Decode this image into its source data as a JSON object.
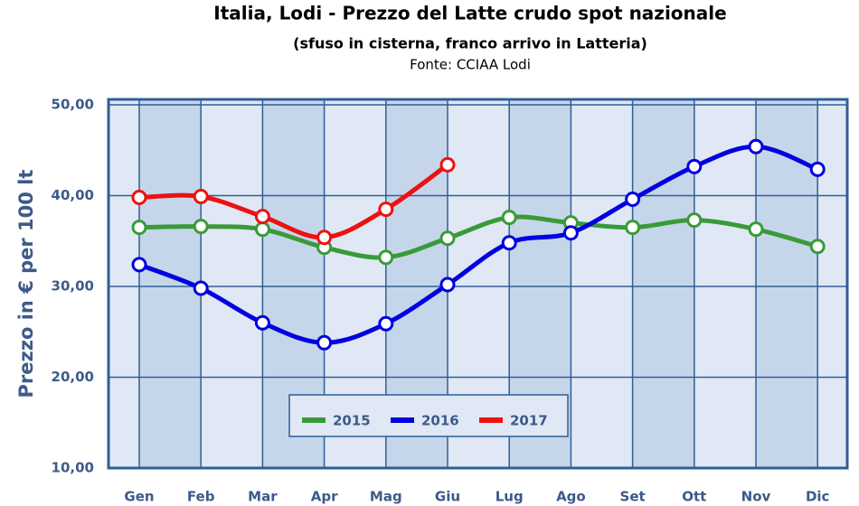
{
  "chart_data": {
    "type": "line",
    "title": "Italia, Lodi - Prezzo del Latte crudo spot nazionale",
    "subtitle": "(sfuso in cisterna, franco arrivo in Latteria)",
    "source": "Fonte: CCIAA Lodi",
    "y_label": "Prezzo in € per 100 lt",
    "categories": [
      "Gen",
      "Feb",
      "Mar",
      "Apr",
      "Mag",
      "Giu",
      "Lug",
      "Ago",
      "Set",
      "Ott",
      "Nov",
      "Dic"
    ],
    "series": [
      {
        "name": "2015",
        "color": "#3a9a3a",
        "values": [
          36.5,
          36.6,
          36.3,
          34.3,
          33.2,
          35.3,
          37.6,
          37.0,
          36.5,
          37.3,
          36.3,
          34.4
        ]
      },
      {
        "name": "2016",
        "color": "#0000e0",
        "values": [
          32.4,
          29.8,
          26.0,
          23.8,
          25.9,
          30.2,
          34.8,
          35.9,
          39.6,
          43.2,
          45.4,
          42.9
        ]
      },
      {
        "name": "2017",
        "color": "#ee1111",
        "values": [
          39.8,
          39.9,
          37.7,
          35.4,
          38.5,
          43.4,
          null,
          null,
          null,
          null,
          null,
          null
        ]
      }
    ],
    "ylim": [
      10,
      50
    ],
    "yticks": [
      {
        "value": 10,
        "label": "10,00"
      },
      {
        "value": 20,
        "label": "20,00"
      },
      {
        "value": 30,
        "label": "30,00"
      },
      {
        "value": 40,
        "label": "40,00"
      },
      {
        "value": 50,
        "label": "50,00"
      }
    ],
    "grid": true
  }
}
